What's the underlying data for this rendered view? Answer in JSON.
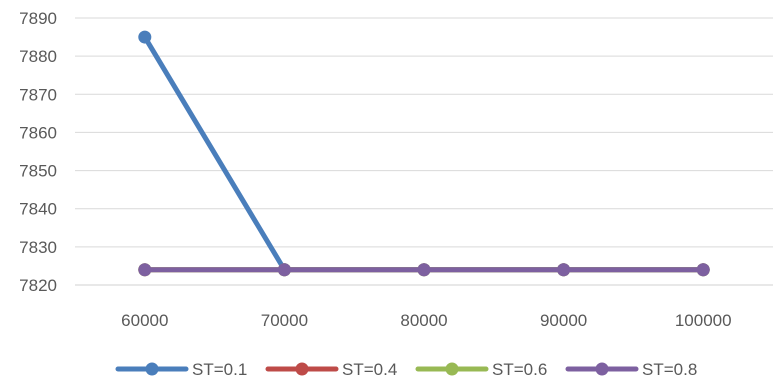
{
  "chart_data": {
    "type": "line",
    "title": "",
    "xlabel": "",
    "ylabel": "",
    "categories": [
      "60000",
      "70000",
      "80000",
      "90000",
      "100000"
    ],
    "ylim": [
      7820,
      7890
    ],
    "yticks": [
      7820,
      7830,
      7840,
      7850,
      7860,
      7870,
      7880,
      7890
    ],
    "grid": true,
    "legend_position": "bottom",
    "series": [
      {
        "name": "ST=0.1",
        "color": "#4a7ebb",
        "values": [
          7885,
          7824,
          7824,
          7824,
          7824
        ]
      },
      {
        "name": "ST=0.4",
        "color": "#be4b48",
        "values": [
          7824,
          7824,
          7824,
          7824,
          7824
        ]
      },
      {
        "name": "ST=0.6",
        "color": "#98b954",
        "values": [
          7824,
          7824,
          7824,
          7824,
          7824
        ]
      },
      {
        "name": "ST=0.8",
        "color": "#7d60a0",
        "values": [
          7824,
          7824,
          7824,
          7824,
          7824
        ]
      }
    ]
  }
}
